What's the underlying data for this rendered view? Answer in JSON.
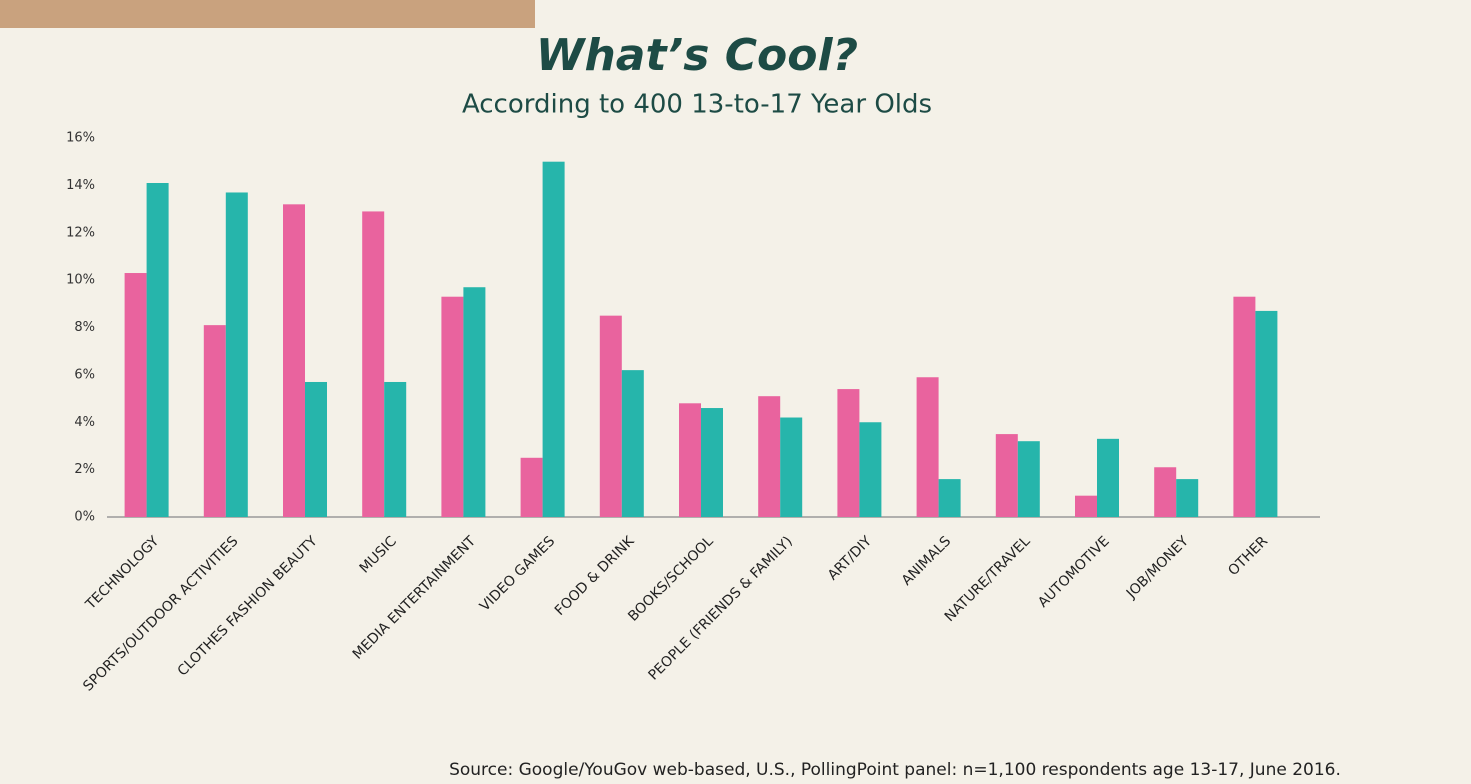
{
  "chart_data": {
    "type": "bar",
    "title": "What’s Cool?",
    "subtitle": "According to 400 13-to-17 Year Olds",
    "source": "Source: Google/YouGov web-based, U.S., PollingPoint panel: n=1,100 respondents age 13-17, June 2016.",
    "categories": [
      "TECHNOLOGY",
      "SPORTS/OUTDOOR ACTIVITIES",
      "CLOTHES FASHION BEAUTY",
      "MUSIC",
      "MEDIA ENTERTAINMENT",
      "VIDEO GAMES",
      "FOOD & DRINK",
      "BOOKS/SCHOOL",
      "PEOPLE (FRIENDS & FAMILY)",
      "ART/DIY",
      "ANIMALS",
      "NATURE/TRAVEL",
      "AUTOMOTIVE",
      "JOB/MONEY",
      "OTHER"
    ],
    "series": [
      {
        "color": "#e9639e",
        "values": [
          10.3,
          8.1,
          13.2,
          12.9,
          9.3,
          2.5,
          8.5,
          4.8,
          5.1,
          5.4,
          5.9,
          3.5,
          0.9,
          2.1,
          9.3
        ]
      },
      {
        "color": "#26b5ab",
        "values": [
          14.1,
          13.7,
          5.7,
          5.7,
          9.7,
          15.0,
          6.2,
          4.6,
          4.2,
          4.0,
          1.6,
          3.2,
          3.3,
          1.6,
          8.7
        ]
      }
    ],
    "ylim": [
      0,
      16
    ],
    "yticks": [
      {
        "value": 0,
        "label": "0%"
      },
      {
        "value": 2,
        "label": "2%"
      },
      {
        "value": 4,
        "label": "4%"
      },
      {
        "value": 6,
        "label": "6%"
      },
      {
        "value": 8,
        "label": "8%"
      },
      {
        "value": 10,
        "label": "10%"
      },
      {
        "value": 12,
        "label": "12%"
      },
      {
        "value": 14,
        "label": "14%"
      },
      {
        "value": 16,
        "label": "16%"
      }
    ],
    "grid": false
  }
}
